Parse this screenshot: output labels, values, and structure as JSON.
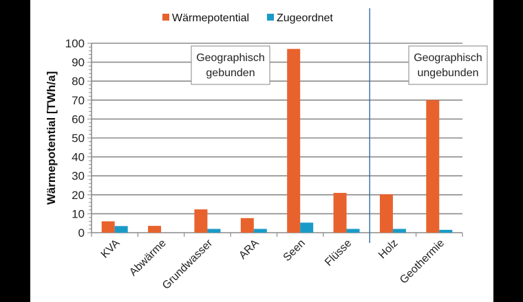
{
  "chart_data": {
    "type": "bar",
    "title": "",
    "xlabel": "",
    "ylabel": "Wärmepotential [TWh/a]",
    "ylim": [
      0,
      100
    ],
    "yticks": [
      0,
      10,
      20,
      30,
      40,
      50,
      60,
      70,
      80,
      90,
      100
    ],
    "grid": true,
    "legend_position": "top",
    "categories": [
      "KVA",
      "Abwärme",
      "Grundwasser",
      "ARA",
      "Seen",
      "Flüsse",
      "Holz",
      "Geothermie"
    ],
    "series": [
      {
        "name": "Wärmepotential",
        "color": "#E8622E",
        "values": [
          6,
          3.6,
          12.3,
          7.7,
          97,
          21,
          20.3,
          70
        ]
      },
      {
        "name": "Zugeordnet",
        "color": "#1A9BC7",
        "values": [
          3.5,
          0,
          2,
          2,
          5.3,
          2,
          2,
          1.5
        ]
      }
    ],
    "annotations": [
      {
        "text_lines": [
          "Geographisch",
          "gebunden"
        ],
        "region": "KVA–Flüsse"
      },
      {
        "text_lines": [
          "Geographisch",
          "ungebunden"
        ],
        "region": "Holz–Geothermie"
      }
    ],
    "divider_after_category": "Flüsse",
    "divider_color": "#2E6DA4"
  }
}
